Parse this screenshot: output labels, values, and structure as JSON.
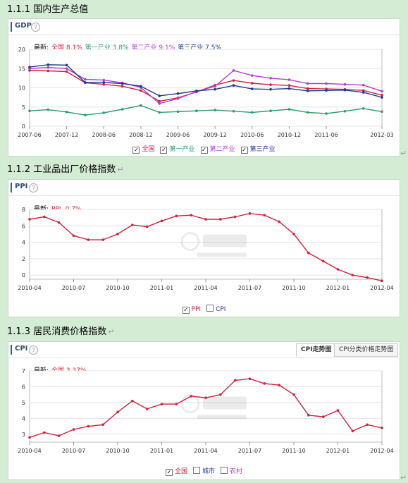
{
  "sections": [
    {
      "title": "1.1.1 国内生产总值"
    },
    {
      "title": "1.1.2 工业品出厂价格指数"
    },
    {
      "title": "1.1.3 居民消费价格指数"
    }
  ],
  "return_mark": "↵",
  "help_glyph": "?",
  "check_glyph": "✓",
  "chart_data": [
    {
      "type": "line",
      "panel_label": "GDP",
      "latest_label": "最新:",
      "latest": [
        {
          "name": "全国",
          "value": "8.1%",
          "color": "#d0223f"
        },
        {
          "name": "第一产业",
          "value": "3.8%",
          "color": "#2e9a6e"
        },
        {
          "name": "第二产业",
          "value": "9.1%",
          "color": "#b23fd0"
        },
        {
          "name": "第三产业",
          "value": "7.5%",
          "color": "#1f3a8a"
        }
      ],
      "ylim": [
        0,
        20
      ],
      "yticks": [
        "0",
        "5",
        "10",
        "15",
        "20"
      ],
      "xticks": [
        "2007-06",
        "2007-12",
        "2008-06",
        "2008-12",
        "2009-06",
        "2009-12",
        "2010-06",
        "2010-12",
        "2011-06",
        "2012-03"
      ],
      "xtick_positions": [
        0,
        2,
        4,
        6,
        8,
        10,
        12,
        14,
        16,
        19
      ],
      "n_points": 20,
      "series": [
        {
          "name": "全国",
          "color": "#d0223f",
          "values": [
            14.5,
            14.4,
            14.2,
            11.3,
            10.9,
            10.4,
            9.3,
            6.5,
            7.4,
            8.9,
            10.7,
            11.9,
            11.2,
            10.8,
            10.6,
            9.8,
            9.7,
            9.6,
            9.3,
            8.1
          ],
          "checked": true
        },
        {
          "name": "第一产业",
          "color": "#2e9a6e",
          "values": [
            4.0,
            4.3,
            3.7,
            2.9,
            3.5,
            4.4,
            5.4,
            3.6,
            3.8,
            4.0,
            4.2,
            3.9,
            3.6,
            4.0,
            4.4,
            3.6,
            3.3,
            3.9,
            4.6,
            3.8
          ],
          "checked": true
        },
        {
          "name": "第二产业",
          "color": "#b23fd0",
          "values": [
            15.0,
            15.3,
            15.0,
            12.2,
            12.0,
            11.3,
            10.1,
            5.9,
            7.2,
            9.0,
            10.4,
            14.5,
            13.2,
            12.5,
            12.1,
            11.1,
            11.1,
            10.9,
            10.7,
            9.1
          ],
          "checked": true
        },
        {
          "name": "第三产业",
          "color": "#1f3a8a",
          "values": [
            15.4,
            16.0,
            15.9,
            11.4,
            11.4,
            11.1,
            10.4,
            7.9,
            8.5,
            9.2,
            9.6,
            10.6,
            9.7,
            9.6,
            9.8,
            9.2,
            9.3,
            9.4,
            8.8,
            7.5
          ],
          "checked": true
        }
      ]
    },
    {
      "type": "line",
      "panel_label": "PPI",
      "latest_label": "最新:",
      "latest": [
        {
          "name": "PPI",
          "value": "-0.7%",
          "color": "#d0223f"
        }
      ],
      "ylim": [
        -0.5,
        8
      ],
      "yticks": [
        "0",
        "2",
        "4",
        "6",
        "8"
      ],
      "ytick_values": [
        0,
        2,
        4,
        6,
        8
      ],
      "xticks": [
        "2010-04",
        "2010-07",
        "2010-10",
        "2011-01",
        "2011-04",
        "2011-07",
        "2011-10",
        "2012-01",
        "2012-04"
      ],
      "xtick_positions": [
        0,
        3,
        6,
        9,
        12,
        15,
        18,
        21,
        24
      ],
      "n_points": 25,
      "series": [
        {
          "name": "PPI",
          "color": "#d0223f",
          "values": [
            6.8,
            7.1,
            6.4,
            4.8,
            4.3,
            4.3,
            5.0,
            6.1,
            5.9,
            6.6,
            7.2,
            7.3,
            6.8,
            6.8,
            7.1,
            7.5,
            7.3,
            6.5,
            5.0,
            2.7,
            1.7,
            0.7,
            0.0,
            -0.3,
            -0.7
          ],
          "checked": true
        },
        {
          "name": "CPI",
          "color": "#1f3a8a",
          "values": [],
          "checked": false
        }
      ]
    },
    {
      "type": "line",
      "panel_label": "CPI",
      "tabs": [
        {
          "label": "CPI走势图",
          "active": true
        },
        {
          "label": "CPI分类价格走势图",
          "active": false
        }
      ],
      "latest_label": "最新:",
      "latest": [
        {
          "name": "全国",
          "value": "3.37%",
          "color": "#d0223f"
        }
      ],
      "ylim": [
        2.5,
        7
      ],
      "yticks": [
        "3",
        "4",
        "5",
        "6",
        "7"
      ],
      "ytick_values": [
        3,
        4,
        5,
        6,
        7
      ],
      "xticks": [
        "2010-04",
        "2010-07",
        "2010-10",
        "2011-01",
        "2011-04",
        "2011-07",
        "2011-10",
        "2012-01",
        "2012-04"
      ],
      "xtick_positions": [
        0,
        3,
        6,
        9,
        12,
        15,
        18,
        21,
        24
      ],
      "n_points": 25,
      "series": [
        {
          "name": "全国",
          "color": "#d0223f",
          "values": [
            2.8,
            3.1,
            2.9,
            3.3,
            3.5,
            3.6,
            4.4,
            5.1,
            4.6,
            4.9,
            4.9,
            5.4,
            5.3,
            5.5,
            6.4,
            6.5,
            6.2,
            6.1,
            5.5,
            4.2,
            4.1,
            4.5,
            3.2,
            3.6,
            3.4
          ],
          "checked": true
        },
        {
          "name": "城市",
          "color": "#1f3a8a",
          "values": [],
          "checked": false
        },
        {
          "name": "农村",
          "color": "#b23fd0",
          "values": [],
          "checked": false
        }
      ]
    }
  ]
}
